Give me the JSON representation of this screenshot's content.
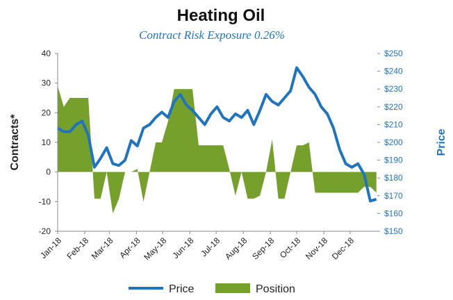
{
  "chart_data": {
    "type": "line-area",
    "title": "Heating Oil",
    "subtitle": "Contract Risk Exposure  0.26%",
    "ylabel": "Contracts*",
    "y2label": "Price",
    "x": [
      0,
      7,
      14,
      21,
      28,
      35,
      42,
      49,
      56,
      63,
      70,
      77,
      84,
      91,
      98,
      105,
      112,
      119,
      126,
      133,
      140,
      147,
      154,
      161,
      168,
      175,
      182,
      189,
      196,
      203,
      210,
      217,
      224,
      231,
      238,
      245,
      252,
      259,
      266,
      273,
      280,
      287,
      294,
      301,
      308,
      315,
      322,
      329,
      336,
      343,
      350,
      357,
      364
    ],
    "xlim": [
      0,
      365
    ],
    "xticks": [
      {
        "value": 0,
        "label": "Jan-18"
      },
      {
        "value": 31,
        "label": "Feb-18"
      },
      {
        "value": 59,
        "label": "Mar-18"
      },
      {
        "value": 90,
        "label": "Apr-18"
      },
      {
        "value": 120,
        "label": "May-18"
      },
      {
        "value": 151,
        "label": "Jun-18"
      },
      {
        "value": 181,
        "label": "Jul-18"
      },
      {
        "value": 212,
        "label": "Aug-18"
      },
      {
        "value": 243,
        "label": "Sep-18"
      },
      {
        "value": 273,
        "label": "Oct-18"
      },
      {
        "value": 304,
        "label": "Nov-18"
      },
      {
        "value": 334,
        "label": "Dec-18"
      }
    ],
    "ylim": [
      -20,
      40
    ],
    "yticks": [
      -20,
      -10,
      0,
      10,
      20,
      30,
      40
    ],
    "y2lim": [
      150,
      250
    ],
    "y2ticks": [
      {
        "value": 150,
        "label": "$150"
      },
      {
        "value": 160,
        "label": "$160"
      },
      {
        "value": 170,
        "label": "$170"
      },
      {
        "value": 180,
        "label": "$180"
      },
      {
        "value": 190,
        "label": "$190"
      },
      {
        "value": 200,
        "label": "$200"
      },
      {
        "value": 210,
        "label": "$210"
      },
      {
        "value": 220,
        "label": "$220"
      },
      {
        "value": 230,
        "label": "$230"
      },
      {
        "value": 240,
        "label": "$240"
      },
      {
        "value": 250,
        "label": "$250"
      }
    ],
    "series": [
      {
        "name": "Price",
        "type": "line",
        "axis": "y2",
        "color": "#1f74c0",
        "values": [
          208,
          206,
          206,
          210,
          212,
          204,
          186,
          191,
          197,
          188,
          187,
          190,
          201,
          198,
          208,
          210,
          214,
          217,
          214,
          223,
          227,
          221,
          218,
          214,
          210,
          216,
          220,
          214,
          212,
          216,
          214,
          218,
          210,
          218,
          227,
          223,
          221,
          225,
          229,
          242,
          237,
          231,
          227,
          220,
          216,
          208,
          196,
          188,
          186,
          188,
          182,
          167,
          168
        ]
      },
      {
        "name": "Position",
        "type": "area",
        "axis": "y",
        "color": "#76a02c",
        "values": [
          29,
          22,
          25,
          25,
          25,
          25,
          -9,
          -9,
          0,
          -14,
          -9,
          0,
          0,
          1,
          -10,
          0,
          10,
          10,
          17,
          28,
          28,
          28,
          28,
          9,
          9,
          9,
          9,
          9,
          1,
          -8,
          0,
          -9,
          -9,
          -8,
          0,
          11,
          -9,
          -9,
          0,
          9,
          9,
          10,
          -7,
          -7,
          -7,
          -7,
          -7,
          -7,
          -7,
          -7,
          -5,
          -5,
          -7
        ]
      }
    ]
  }
}
